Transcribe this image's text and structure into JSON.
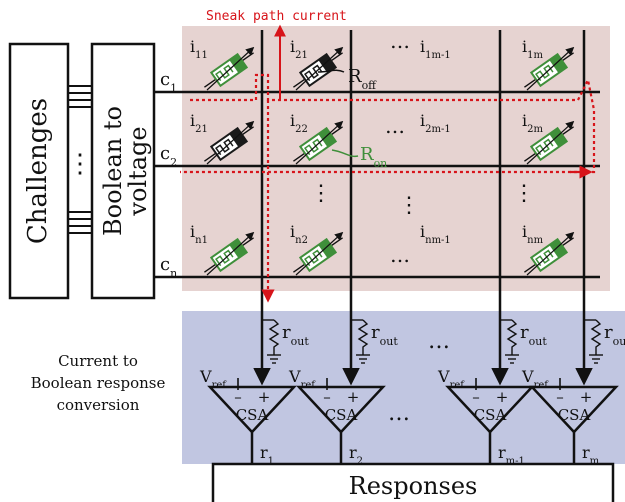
{
  "colors": {
    "crossbar_bg": "#e6d3d1",
    "readout_bg": "#c1c6e1",
    "sneak": "#d7141a",
    "memristor_on": "#3f8f3a",
    "memristor_off": "#1a1a1a",
    "ink": "#111111"
  },
  "labels": {
    "challenges": "Challenges",
    "bool_line1": "Boolean to",
    "bool_line2": "voltage",
    "vdots": "⋮",
    "sneak_path": "Sneak path current",
    "r_off": "R",
    "r_off_sub": "off",
    "r_on": "R",
    "r_on_sub": "on",
    "current_line1": "Current to",
    "current_line2": "Boolean response",
    "current_line3": "conversion",
    "responses": "Responses",
    "csa": "CSA",
    "r_out": "r",
    "r_out_sub": "out",
    "v_ref": "V",
    "v_ref_sub": "ref",
    "dots": "…",
    "minus": "–",
    "plus": "+"
  },
  "rows": [
    {
      "name": "c",
      "sub": "1"
    },
    {
      "name": "c",
      "sub": "2"
    },
    {
      "name": "c",
      "sub": "n"
    }
  ],
  "cells": [
    [
      {
        "i": "i",
        "sub": "11",
        "state": "on"
      },
      {
        "i": "i",
        "sub": "21",
        "state": "off"
      },
      {
        "i": "i",
        "sub": "1m-1",
        "state": "none"
      },
      {
        "i": "i",
        "sub": "1m",
        "state": "on"
      }
    ],
    [
      {
        "i": "i",
        "sub": "21",
        "state": "off"
      },
      {
        "i": "i",
        "sub": "22",
        "state": "on"
      },
      {
        "i": "i",
        "sub": "2m-1",
        "state": "none"
      },
      {
        "i": "i",
        "sub": "2m",
        "state": "on"
      }
    ],
    [
      {
        "i": "i",
        "sub": "n1",
        "state": "on"
      },
      {
        "i": "i",
        "sub": "n2",
        "state": "on"
      },
      {
        "i": "i",
        "sub": "nm-1",
        "state": "none"
      },
      {
        "i": "i",
        "sub": "nm",
        "state": "on"
      }
    ]
  ],
  "outputs": [
    {
      "name": "r",
      "sub": "1"
    },
    {
      "name": "r",
      "sub": "2"
    },
    {
      "name": "r",
      "sub": "m-1"
    },
    {
      "name": "r",
      "sub": "m"
    }
  ]
}
